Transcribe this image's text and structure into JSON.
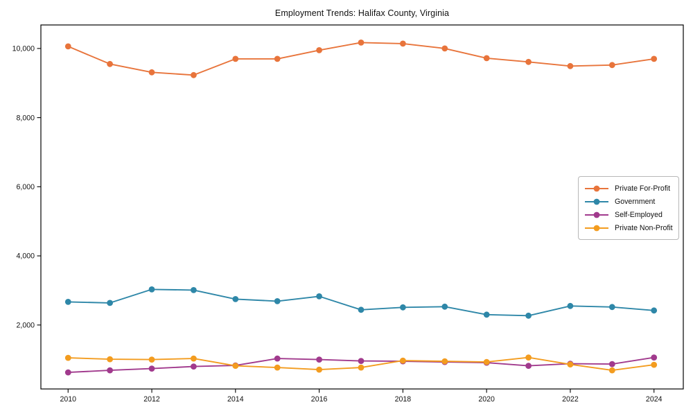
{
  "title": "Employment Trends: Halifax County, Virginia",
  "colors": {
    "private_for_profit": "#E8743B",
    "government": "#2E87A8",
    "self_employed": "#A13A8D",
    "private_non_profit": "#F39C1F",
    "axis": "#000000",
    "tick_label": "#111111",
    "legend_border": "#b7b7b7",
    "background": "#ffffff"
  },
  "chart_data": {
    "type": "line",
    "title": "Employment Trends: Halifax County, Virginia",
    "xlabel": "",
    "ylabel": "",
    "grid": false,
    "marker": "circle",
    "legend_position": "center-right",
    "x": [
      2010,
      2011,
      2012,
      2013,
      2014,
      2015,
      2016,
      2017,
      2018,
      2019,
      2020,
      2021,
      2022,
      2023,
      2024
    ],
    "xticks": [
      2010,
      2012,
      2014,
      2016,
      2018,
      2020,
      2022,
      2024
    ],
    "xtick_labels": [
      "2010",
      "2012",
      "2014",
      "2016",
      "2018",
      "2020",
      "2022",
      "2024"
    ],
    "yticks": [
      2000,
      4000,
      6000,
      8000,
      10000
    ],
    "ytick_labels": [
      "2,000",
      "4,000",
      "6,000",
      "8,000",
      "10,000"
    ],
    "ylim": [
      150,
      10680
    ],
    "xlim": [
      2009.35,
      2024.7
    ],
    "series": [
      {
        "name": "Private For-Profit",
        "color": "#E8743B",
        "values": [
          10060,
          9550,
          9310,
          9230,
          9700,
          9700,
          9950,
          10170,
          10140,
          10000,
          9720,
          9610,
          9490,
          9520,
          9700
        ]
      },
      {
        "name": "Government",
        "color": "#2E87A8",
        "values": [
          2670,
          2640,
          3030,
          3010,
          2750,
          2690,
          2830,
          2440,
          2510,
          2530,
          2300,
          2270,
          2550,
          2520,
          2420
        ]
      },
      {
        "name": "Self-Employed",
        "color": "#A13A8D",
        "values": [
          630,
          690,
          740,
          800,
          830,
          1030,
          1000,
          960,
          950,
          930,
          910,
          820,
          880,
          870,
          1060
        ]
      },
      {
        "name": "Private Non-Profit",
        "color": "#F39C1F",
        "values": [
          1050,
          1010,
          1000,
          1030,
          820,
          770,
          710,
          770,
          970,
          950,
          930,
          1060,
          860,
          690,
          850
        ]
      }
    ]
  }
}
